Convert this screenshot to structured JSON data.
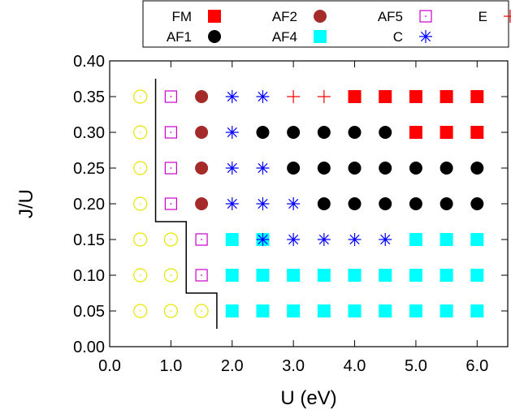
{
  "chart_data": {
    "type": "scatter",
    "xlabel": "U (eV)",
    "ylabel": "J/U",
    "xlim": [
      0.0,
      6.5
    ],
    "ylim": [
      0.0,
      0.4
    ],
    "x_ticks": [
      "0.0",
      "1.0",
      "2.0",
      "3.0",
      "4.0",
      "5.0",
      "6.0"
    ],
    "y_ticks": [
      "0.00",
      "0.05",
      "0.10",
      "0.15",
      "0.20",
      "0.25",
      "0.30",
      "0.35",
      "0.40"
    ],
    "grid": false,
    "legend_position": "top",
    "series": [
      {
        "name": "FM",
        "marker": "filled-square",
        "color": "#ff0000",
        "points": [
          [
            4.0,
            0.35
          ],
          [
            4.5,
            0.35
          ],
          [
            5.0,
            0.35
          ],
          [
            5.5,
            0.35
          ],
          [
            6.0,
            0.35
          ],
          [
            5.0,
            0.3
          ],
          [
            5.5,
            0.3
          ],
          [
            6.0,
            0.3
          ]
        ]
      },
      {
        "name": "AF1",
        "marker": "filled-circle",
        "color": "#000000",
        "points": [
          [
            2.5,
            0.3
          ],
          [
            3.0,
            0.3
          ],
          [
            3.5,
            0.3
          ],
          [
            4.0,
            0.3
          ],
          [
            4.5,
            0.3
          ],
          [
            3.0,
            0.25
          ],
          [
            3.5,
            0.25
          ],
          [
            4.0,
            0.25
          ],
          [
            4.5,
            0.25
          ],
          [
            5.0,
            0.25
          ],
          [
            5.5,
            0.25
          ],
          [
            6.0,
            0.25
          ],
          [
            3.5,
            0.2
          ],
          [
            4.0,
            0.2
          ],
          [
            4.5,
            0.2
          ],
          [
            5.0,
            0.2
          ],
          [
            5.5,
            0.2
          ],
          [
            6.0,
            0.2
          ]
        ]
      },
      {
        "name": "AF2",
        "marker": "filled-circle",
        "color": "#a52a2a",
        "points": [
          [
            1.5,
            0.35
          ],
          [
            1.5,
            0.3
          ],
          [
            1.5,
            0.25
          ],
          [
            1.5,
            0.2
          ]
        ]
      },
      {
        "name": "AF4",
        "marker": "filled-square",
        "color": "#00ffff",
        "points": [
          [
            2.0,
            0.15
          ],
          [
            2.5,
            0.15
          ],
          [
            5.0,
            0.15
          ],
          [
            5.5,
            0.15
          ],
          [
            6.0,
            0.15
          ],
          [
            2.0,
            0.1
          ],
          [
            2.5,
            0.1
          ],
          [
            3.0,
            0.1
          ],
          [
            3.5,
            0.1
          ],
          [
            4.0,
            0.1
          ],
          [
            4.5,
            0.1
          ],
          [
            5.0,
            0.1
          ],
          [
            5.5,
            0.1
          ],
          [
            6.0,
            0.1
          ],
          [
            2.0,
            0.05
          ],
          [
            2.5,
            0.05
          ],
          [
            3.0,
            0.05
          ],
          [
            3.5,
            0.05
          ],
          [
            4.0,
            0.05
          ],
          [
            4.5,
            0.05
          ],
          [
            5.0,
            0.05
          ],
          [
            5.5,
            0.05
          ],
          [
            6.0,
            0.05
          ]
        ]
      },
      {
        "name": "AF5",
        "marker": "open-square-dot",
        "color": "#cc00cc",
        "points": [
          [
            1.0,
            0.35
          ],
          [
            1.0,
            0.3
          ],
          [
            1.0,
            0.25
          ],
          [
            1.0,
            0.2
          ],
          [
            1.5,
            0.15
          ],
          [
            1.5,
            0.1
          ]
        ]
      },
      {
        "name": "C",
        "marker": "asterisk",
        "color": "#0000ff",
        "points": [
          [
            2.0,
            0.35
          ],
          [
            2.5,
            0.35
          ],
          [
            2.0,
            0.3
          ],
          [
            2.0,
            0.25
          ],
          [
            2.5,
            0.25
          ],
          [
            2.0,
            0.2
          ],
          [
            2.5,
            0.2
          ],
          [
            3.0,
            0.2
          ],
          [
            2.5,
            0.15
          ],
          [
            3.0,
            0.15
          ],
          [
            3.5,
            0.15
          ],
          [
            4.0,
            0.15
          ],
          [
            4.5,
            0.15
          ]
        ]
      },
      {
        "name": "E",
        "marker": "plus",
        "color": "#ff0000",
        "points": [
          [
            3.0,
            0.35
          ],
          [
            3.5,
            0.35
          ]
        ]
      },
      {
        "name": "",
        "marker": "open-circle-dot",
        "color": "#e6e600",
        "points": [
          [
            0.5,
            0.35
          ],
          [
            0.5,
            0.3
          ],
          [
            0.5,
            0.25
          ],
          [
            0.5,
            0.2
          ],
          [
            0.5,
            0.15
          ],
          [
            1.0,
            0.15
          ],
          [
            0.5,
            0.1
          ],
          [
            1.0,
            0.1
          ],
          [
            0.5,
            0.05
          ],
          [
            1.0,
            0.05
          ],
          [
            1.5,
            0.05
          ]
        ]
      }
    ],
    "boundary_line": {
      "color": "#000000",
      "points": [
        [
          0.75,
          0.375
        ],
        [
          0.75,
          0.175
        ],
        [
          1.25,
          0.175
        ],
        [
          1.25,
          0.075
        ],
        [
          1.75,
          0.075
        ],
        [
          1.75,
          0.025
        ]
      ]
    }
  }
}
